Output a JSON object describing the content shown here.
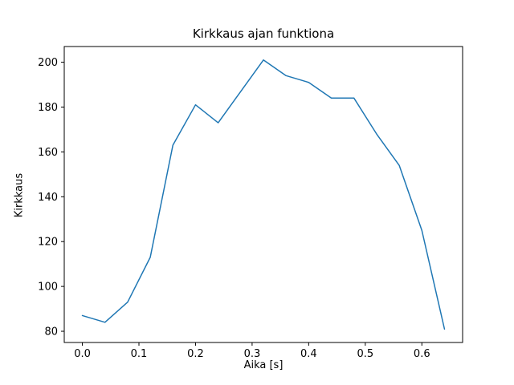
{
  "chart_data": {
    "type": "line",
    "title": "Kirkkaus ajan funktiona",
    "xlabel": "Aika [s]",
    "ylabel": "Kirkkaus",
    "x": [
      0.0,
      0.04,
      0.08,
      0.12,
      0.16,
      0.2,
      0.24,
      0.28,
      0.32,
      0.36,
      0.4,
      0.44,
      0.48,
      0.52,
      0.56,
      0.6,
      0.64
    ],
    "y": [
      87,
      84,
      93,
      113,
      163,
      181,
      173,
      187,
      201,
      194,
      191,
      184,
      184,
      168,
      154,
      125,
      81
    ],
    "xlim": [
      -0.032,
      0.672
    ],
    "ylim": [
      75,
      207
    ],
    "xtick_values": [
      0.0,
      0.1,
      0.2,
      0.3,
      0.4,
      0.5,
      0.6
    ],
    "xtick_labels": [
      "0.0",
      "0.1",
      "0.2",
      "0.3",
      "0.4",
      "0.5",
      "0.6"
    ],
    "ytick_values": [
      80,
      100,
      120,
      140,
      160,
      180,
      200
    ],
    "ytick_labels": [
      "80",
      "100",
      "120",
      "140",
      "160",
      "180",
      "200"
    ],
    "line_color": "#1f77b4",
    "axes_color": "#000000",
    "background_color": "#ffffff",
    "grid": "off",
    "legend": "none"
  }
}
